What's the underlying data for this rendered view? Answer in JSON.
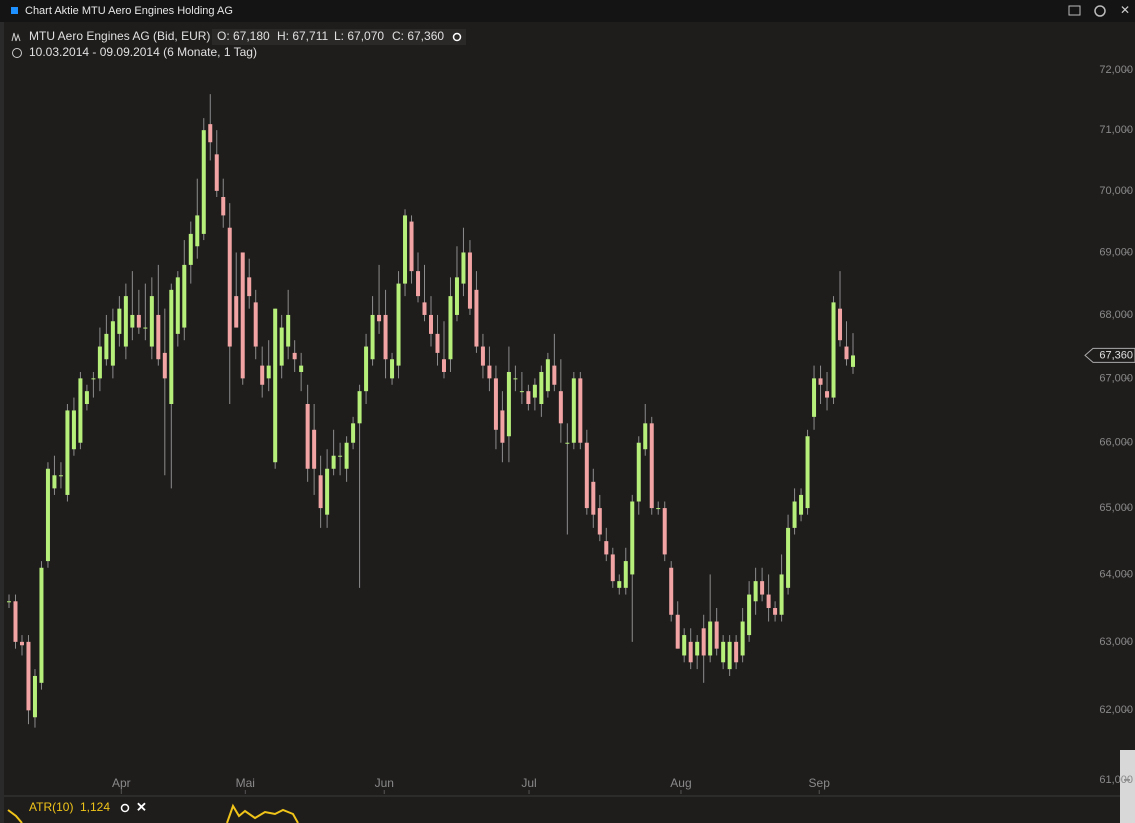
{
  "chart_data": {
    "type": "candlestick",
    "title": "Chart Aktie MTU Aero Engines Holding AG",
    "subtitle": "MTU Aero Engines AG (Bid, EUR)",
    "ohlc_labels": [
      "O: 67,180",
      "H: 67,711",
      "L: 67,070",
      "C: 67,360"
    ],
    "date_range": "10.03.2014 - 09.09.2014 (6 Monate, 1 Tag)",
    "log_scale": true,
    "up_color": "#b6ef7a",
    "down_color": "#f2a3a3",
    "wick_color": "#8c8c8c",
    "series": {
      "open": [
        63600,
        63600,
        63000,
        63000,
        61900,
        62400,
        64200,
        65300,
        65500,
        65200,
        65900,
        66000,
        66600,
        67000,
        67000,
        67300,
        67200,
        67700,
        67500,
        67800,
        68000,
        67800,
        67500,
        68000,
        67400,
        66600,
        67700,
        67800,
        68800,
        69100,
        69300,
        71100,
        70600,
        69900,
        69400,
        68300,
        69000,
        68600,
        68200,
        67200,
        67000,
        65700,
        67200,
        67500,
        67400,
        67100,
        66600,
        66200,
        65500,
        64900,
        65600,
        65800,
        65600,
        66000,
        66300,
        66800,
        67300,
        68000,
        68000,
        67000,
        67200,
        68500,
        69500,
        68700,
        68200,
        68000,
        67700,
        67300,
        67300,
        68000,
        68500,
        69000,
        68400,
        67500,
        67200,
        67000,
        66500,
        66100,
        67000,
        66800,
        66800,
        66700,
        66600,
        66800,
        67200,
        66800,
        66000,
        66000,
        67000,
        66000,
        65400,
        65000,
        64500,
        64300,
        63800,
        63800,
        64000,
        65100,
        65900,
        66300,
        65000,
        65000,
        64100,
        63400,
        62800,
        63000,
        62800,
        63200,
        62800,
        63300,
        62700,
        62600,
        63000,
        62800,
        63100,
        63600,
        63900,
        63700,
        63500,
        63400,
        63800,
        64700,
        64900,
        65000,
        66400,
        67000,
        66800,
        66700,
        68100,
        67500,
        67180
      ],
      "high": [
        63700,
        63700,
        63100,
        63100,
        62600,
        64200,
        65700,
        65800,
        65700,
        66600,
        66700,
        67100,
        66900,
        67100,
        67800,
        68000,
        68100,
        68300,
        68500,
        68700,
        68400,
        68500,
        68600,
        68800,
        68100,
        68500,
        68700,
        69200,
        69500,
        70200,
        71200,
        71600,
        71000,
        70200,
        69800,
        69000,
        69000,
        68900,
        68400,
        67500,
        67600,
        68100,
        68000,
        68400,
        67600,
        67400,
        66900,
        66600,
        65800,
        65900,
        66200,
        66000,
        66100,
        66400,
        66900,
        67700,
        68300,
        68800,
        68400,
        67400,
        68700,
        69700,
        69600,
        69000,
        68800,
        68300,
        68000,
        67900,
        68600,
        69100,
        69400,
        69200,
        68700,
        67700,
        67500,
        67200,
        66800,
        67500,
        67200,
        67100,
        66900,
        67000,
        67200,
        67400,
        67700,
        67300,
        66300,
        67100,
        67100,
        66200,
        65600,
        65200,
        64700,
        64400,
        64000,
        64400,
        65200,
        66100,
        66600,
        66400,
        65100,
        65100,
        64200,
        63600,
        63200,
        63200,
        63100,
        63400,
        64000,
        63500,
        63100,
        63100,
        63100,
        63500,
        63900,
        64100,
        64100,
        64000,
        63600,
        64300,
        64900,
        65300,
        65300,
        66200,
        67200,
        67200,
        67100,
        68300,
        68700,
        67900,
        67711
      ],
      "low": [
        63500,
        62900,
        62800,
        61800,
        61750,
        62300,
        64100,
        65200,
        65300,
        65100,
        65800,
        65900,
        66500,
        66700,
        66800,
        67200,
        67000,
        67500,
        67300,
        67600,
        67700,
        67600,
        67300,
        67200,
        65500,
        65300,
        67500,
        67600,
        68500,
        68900,
        69200,
        70500,
        69900,
        69400,
        66600,
        67800,
        66900,
        68100,
        67300,
        66700,
        66800,
        65600,
        67000,
        67300,
        67100,
        66800,
        65400,
        65200,
        64700,
        64700,
        65500,
        65500,
        65400,
        65900,
        63800,
        66600,
        67200,
        67700,
        67000,
        66900,
        67000,
        68300,
        68500,
        68200,
        67900,
        67500,
        67200,
        67000,
        67100,
        67900,
        68300,
        68000,
        67400,
        67000,
        66800,
        65900,
        65700,
        65700,
        66800,
        66600,
        66500,
        66500,
        66400,
        66700,
        66800,
        66000,
        64600,
        65900,
        65900,
        64900,
        64700,
        64500,
        64200,
        63800,
        63700,
        63700,
        63000,
        64900,
        65800,
        64900,
        64900,
        64200,
        63300,
        62900,
        62700,
        62600,
        62600,
        62400,
        62700,
        62800,
        62600,
        62500,
        62600,
        62700,
        63000,
        63400,
        63600,
        63300,
        63300,
        63300,
        63700,
        64600,
        64800,
        64900,
        66200,
        66600,
        66500,
        66600,
        67500,
        67200,
        67070
      ],
      "close": [
        63600,
        63000,
        62950,
        62000,
        62500,
        64100,
        65600,
        65500,
        65500,
        66500,
        66500,
        67000,
        66800,
        67000,
        67500,
        67700,
        67900,
        68100,
        68300,
        68000,
        67800,
        67800,
        68300,
        67300,
        67000,
        68400,
        68600,
        68800,
        69300,
        69600,
        71000,
        70800,
        70000,
        69600,
        67500,
        67800,
        67000,
        68300,
        67500,
        66900,
        67200,
        68100,
        67800,
        68000,
        67300,
        67200,
        65600,
        65600,
        65000,
        65600,
        65800,
        65800,
        66000,
        66300,
        66800,
        67500,
        68000,
        67900,
        67300,
        67300,
        68500,
        69600,
        68700,
        68300,
        68000,
        67700,
        67400,
        67100,
        68300,
        68600,
        69000,
        68100,
        67500,
        67200,
        67000,
        66200,
        66000,
        67100,
        67000,
        66800,
        66600,
        66900,
        67100,
        67300,
        66900,
        66300,
        66000,
        67000,
        66000,
        65000,
        64900,
        64600,
        64300,
        63900,
        63900,
        64200,
        65100,
        66000,
        66300,
        65000,
        65000,
        64300,
        63400,
        62900,
        63100,
        62700,
        63000,
        62800,
        63300,
        62900,
        63000,
        63000,
        62700,
        63300,
        63700,
        63900,
        63700,
        63500,
        63400,
        64000,
        64700,
        65100,
        65200,
        66100,
        67000,
        66900,
        66700,
        68200,
        67600,
        67300,
        67360
      ]
    },
    "ylim": [
      60800,
      72800
    ],
    "yticks": [
      {
        "value": 61000,
        "label": "61,000"
      },
      {
        "value": 62000,
        "label": "62,000"
      },
      {
        "value": 63000,
        "label": "63,000"
      },
      {
        "value": 64000,
        "label": "64,000"
      },
      {
        "value": 65000,
        "label": "65,000"
      },
      {
        "value": 66000,
        "label": "66,000"
      },
      {
        "value": 67000,
        "label": "67,000"
      },
      {
        "value": 68000,
        "label": "68,000"
      },
      {
        "value": 69000,
        "label": "69,000"
      },
      {
        "value": 70000,
        "label": "70,000"
      },
      {
        "value": 71000,
        "label": "71,000"
      },
      {
        "value": 72000,
        "label": "72,000"
      }
    ],
    "xticks": [
      {
        "value": 17.3,
        "label": "Apr"
      },
      {
        "value": 36.4,
        "label": "Mai"
      },
      {
        "value": 57.8,
        "label": "Jun"
      },
      {
        "value": 80.1,
        "label": "Jul"
      },
      {
        "value": 103.5,
        "label": "Aug"
      },
      {
        "value": 124.8,
        "label": "Sep"
      }
    ],
    "close_tag": {
      "value": 67360,
      "label": "67,360"
    },
    "indicator": {
      "name": "ATR(10)",
      "value_label": "1,124"
    }
  }
}
